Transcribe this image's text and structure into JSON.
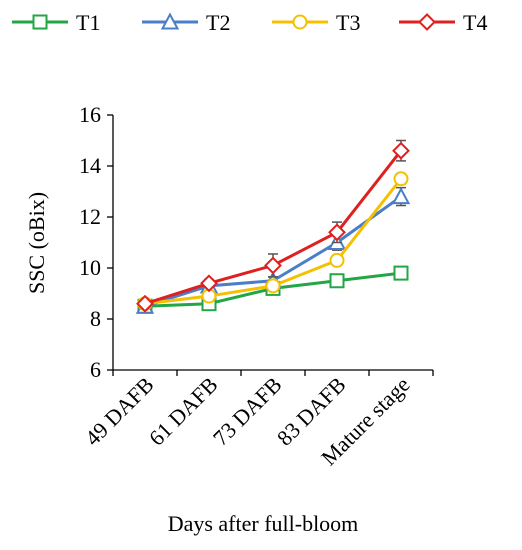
{
  "chart_data": {
    "type": "line",
    "title": "",
    "xlabel": "Days after full-bloom",
    "ylabel": "SSC (oBix)",
    "categories": [
      "49 DAFB",
      "61 DAFB",
      "73 DAFB",
      "83 DAFB",
      "Mature stage"
    ],
    "ylim": [
      6,
      16
    ],
    "yticks": [
      "6",
      "8",
      "10",
      "12",
      "14",
      "16"
    ],
    "grid": false,
    "legend_position": "top",
    "series": [
      {
        "name": "T1",
        "color": "#22a646",
        "marker": "square",
        "values": [
          8.5,
          8.6,
          9.2,
          9.5,
          9.8
        ],
        "errors": [
          0.1,
          0.1,
          0.1,
          0.15,
          0.15
        ]
      },
      {
        "name": "T2",
        "color": "#4a7ec9",
        "marker": "triangle",
        "values": [
          8.5,
          9.3,
          9.5,
          11.0,
          12.8
        ],
        "errors": [
          0.1,
          0.15,
          0.15,
          0.3,
          0.35
        ]
      },
      {
        "name": "T3",
        "color": "#f5c000",
        "marker": "circle",
        "values": [
          8.6,
          8.9,
          9.3,
          10.3,
          13.5
        ],
        "errors": [
          0.1,
          0.1,
          0.15,
          0.2,
          0.2
        ]
      },
      {
        "name": "T4",
        "color": "#e02020",
        "marker": "diamond",
        "values": [
          8.6,
          9.4,
          10.1,
          11.4,
          14.6
        ],
        "errors": [
          0.1,
          0.15,
          0.45,
          0.4,
          0.4
        ]
      }
    ]
  }
}
